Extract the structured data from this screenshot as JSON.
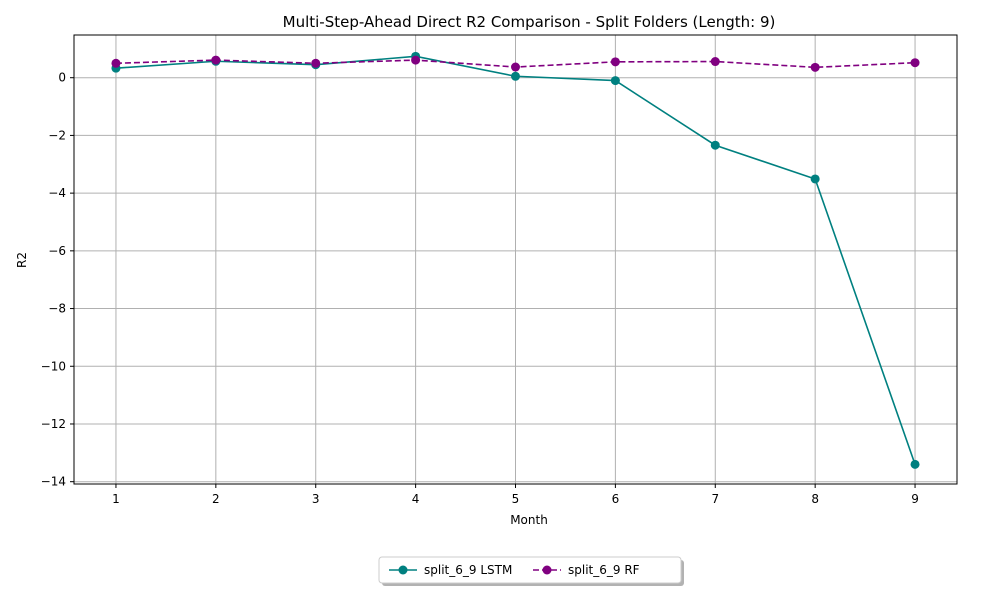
{
  "chart_data": {
    "type": "line",
    "title": "Multi-Step-Ahead Direct R2 Comparison - Split Folders (Length: 9)",
    "xlabel": "Month",
    "ylabel": "R2",
    "x": [
      1,
      2,
      3,
      4,
      5,
      6,
      7,
      8,
      9
    ],
    "xlim": [
      0.58,
      9.42
    ],
    "ylim": [
      -14.08,
      1.48
    ],
    "yticks": [
      0,
      -2,
      -4,
      -6,
      -8,
      -10,
      -12,
      -14
    ],
    "ytick_labels": [
      "0",
      "−2",
      "−4",
      "−6",
      "−8",
      "−10",
      "−12",
      "−14"
    ],
    "xtick_labels": [
      "1",
      "2",
      "3",
      "4",
      "5",
      "6",
      "7",
      "8",
      "9"
    ],
    "grid": true,
    "legend_position": "bottom-center",
    "series": [
      {
        "name": "split_6_9 LSTM",
        "values": [
          0.33,
          0.57,
          0.45,
          0.74,
          0.05,
          -0.1,
          -2.34,
          -3.51,
          -13.4
        ],
        "color": "#008080",
        "style": "solid",
        "marker": "circle"
      },
      {
        "name": "split_6_9 RF",
        "values": [
          0.5,
          0.61,
          0.5,
          0.61,
          0.37,
          0.55,
          0.56,
          0.36,
          0.52
        ],
        "color": "#800080",
        "style": "dashed",
        "marker": "circle"
      }
    ]
  }
}
